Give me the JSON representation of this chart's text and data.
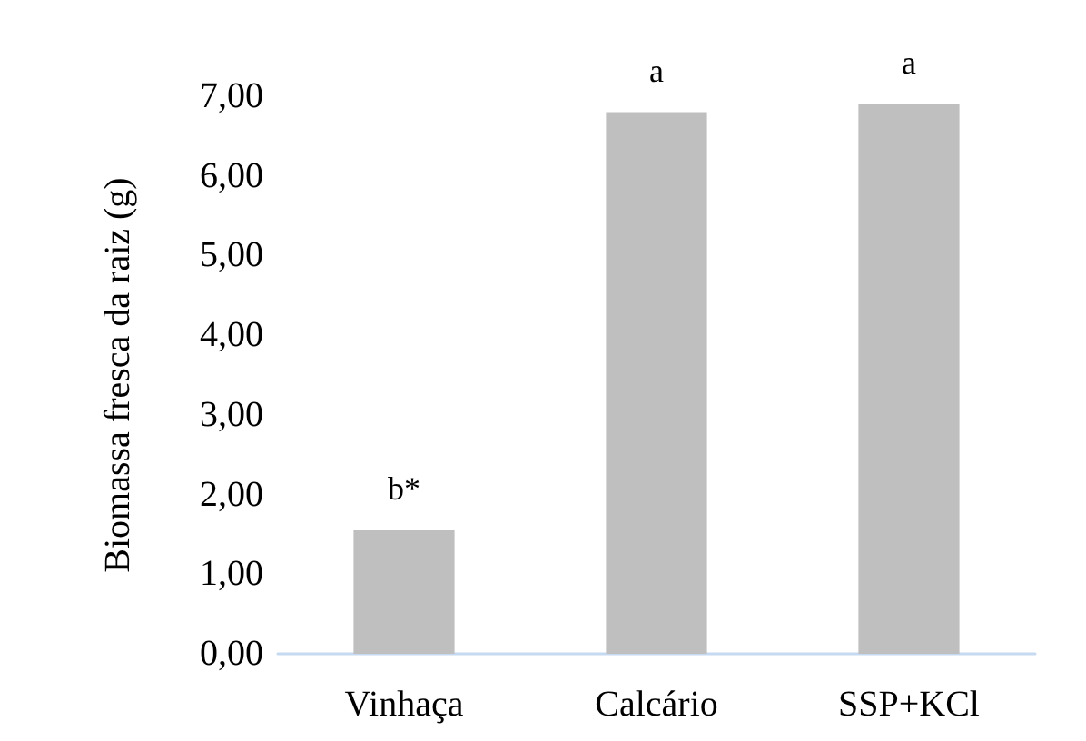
{
  "chart_data": {
    "type": "bar",
    "ylabel": "Biomassa fresca da raiz (g)",
    "categories": [
      "Vinhaça",
      "Calcário",
      "SSP+KCl"
    ],
    "values": [
      1.55,
      6.8,
      6.9
    ],
    "value_labels": [
      "b*",
      "a",
      "a"
    ],
    "color": "#bfbfbf",
    "ylim": [
      0,
      7
    ],
    "yticks": [
      {
        "value": 0,
        "label": "0,00"
      },
      {
        "value": 1,
        "label": "1,00"
      },
      {
        "value": 2,
        "label": "2,00"
      },
      {
        "value": 3,
        "label": "3,00"
      },
      {
        "value": 4,
        "label": "4,00"
      },
      {
        "value": 5,
        "label": "5,00"
      },
      {
        "value": 6,
        "label": "6,00"
      },
      {
        "value": 7,
        "label": "7,00"
      }
    ],
    "grid": false
  }
}
